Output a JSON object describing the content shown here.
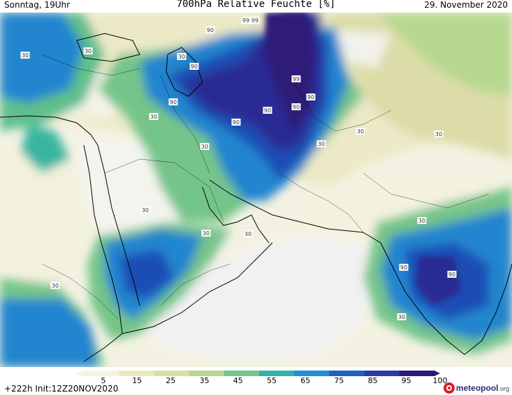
{
  "header": {
    "left": "Sonntag, 19Uhr",
    "title": "700hPa Relative Feuchte [%]",
    "right": "29. November 2020"
  },
  "footer": {
    "run_info": "+222h Init:12Z20NOV2020",
    "brand_name": "meteopool",
    "brand_tld": ".org"
  },
  "colorbar": {
    "labels": [
      "5",
      "15",
      "25",
      "35",
      "45",
      "55",
      "65",
      "75",
      "85",
      "95",
      "100"
    ],
    "colors": [
      "#f2f2f2",
      "#f5f3dd",
      "#ece8c0",
      "#d8e0a6",
      "#b6d88e",
      "#74c58a",
      "#2fb3a9",
      "#1e8fd2",
      "#1f5fc0",
      "#2a3aa6",
      "#2c1a78"
    ]
  },
  "map": {
    "contour_labels": [
      "99",
      "99",
      "99",
      "90",
      "90",
      "90",
      "90",
      "90",
      "90",
      "90",
      "90",
      "90",
      "30",
      "30",
      "30",
      "30",
      "30",
      "30",
      "30",
      "30",
      "30",
      "30",
      "30",
      "30",
      "30",
      "30"
    ],
    "colors": {
      "ocean_dry": "#f1f1f1",
      "land_dry": "#f7f5e4",
      "sand": "#ece9c6",
      "olive": "#dcdca8",
      "green": "#a9d58a",
      "teal": "#37b6a0",
      "blue": "#2385cf",
      "deep_blue": "#1f4eb4",
      "navy": "#2a2c93",
      "purple": "#2e1a78"
    }
  }
}
